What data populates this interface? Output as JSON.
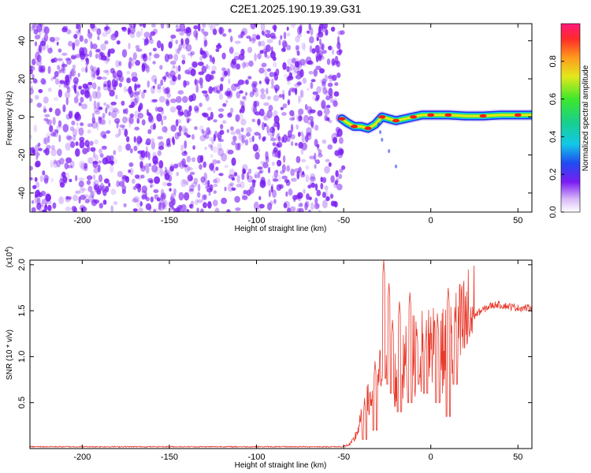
{
  "title": "C2E1.2025.190.19.39.G31",
  "chart_data": [
    {
      "type": "heatmap",
      "xlabel": "Height of straight line (km)",
      "ylabel": "Frequency (Hz)",
      "xlim": [
        -230,
        58
      ],
      "ylim": [
        -50,
        49
      ],
      "x_ticks": [
        -200,
        -150,
        -100,
        -50,
        0,
        50
      ],
      "y_ticks": [
        -40,
        -20,
        0,
        20,
        40
      ],
      "noise_region_x": [
        -230,
        -50
      ],
      "signal_track": [
        {
          "x": -51,
          "y": -1
        },
        {
          "x": -48,
          "y": -3
        },
        {
          "x": -44,
          "y": -5
        },
        {
          "x": -40,
          "y": -5
        },
        {
          "x": -36,
          "y": -6
        },
        {
          "x": -32,
          "y": -4
        },
        {
          "x": -28,
          "y": 0
        },
        {
          "x": -24,
          "y": -1
        },
        {
          "x": -20,
          "y": -2
        },
        {
          "x": -15,
          "y": -1
        },
        {
          "x": -10,
          "y": 0
        },
        {
          "x": -5,
          "y": 1
        },
        {
          "x": 0,
          "y": 1
        },
        {
          "x": 5,
          "y": 1
        },
        {
          "x": 10,
          "y": 1
        },
        {
          "x": 20,
          "y": 0.5
        },
        {
          "x": 30,
          "y": 0.5
        },
        {
          "x": 40,
          "y": 1
        },
        {
          "x": 50,
          "y": 1
        },
        {
          "x": 58,
          "y": 1
        }
      ],
      "colorbar": {
        "label": "Normalized spectral amplitude",
        "range": [
          0.0,
          1.0
        ],
        "ticks": [
          0.0,
          0.2,
          0.4,
          0.6,
          0.8
        ]
      },
      "colors": {
        "noise": "#7a1cf2",
        "peak": "#ff1a1a",
        "track": "#2a9d2a"
      }
    },
    {
      "type": "line",
      "xlabel": "Height of straight line (km)",
      "ylabel": "SNR (10 * v/v)",
      "multiplier_label": "(x10",
      "multiplier_exp": "4",
      "xlim": [
        -230,
        58
      ],
      "ylim": [
        0,
        2.05
      ],
      "x_ticks": [
        -200,
        -150,
        -100,
        -50,
        0,
        50
      ],
      "y_ticks": [
        0.5,
        1.0,
        1.5,
        2.0
      ],
      "series": [
        {
          "color": "#e83a2c",
          "points": [
            [
              -230,
              0.02
            ],
            [
              -120,
              0.02
            ],
            [
              -60,
              0.02
            ],
            [
              -50,
              0.02
            ],
            [
              -46,
              0.05
            ],
            [
              -44,
              0.1
            ],
            [
              -42,
              0.2
            ],
            [
              -40,
              0.3
            ],
            [
              -38,
              0.4
            ],
            [
              -36,
              0.5
            ],
            [
              -34,
              0.55
            ],
            [
              -32,
              0.6
            ],
            [
              -30,
              0.7
            ],
            [
              -28,
              0.9
            ],
            [
              -26,
              1.2
            ],
            [
              -24,
              1.1
            ],
            [
              -22,
              0.8
            ],
            [
              -20,
              0.75
            ],
            [
              -18,
              0.75
            ],
            [
              -16,
              0.85
            ],
            [
              -14,
              0.95
            ],
            [
              -12,
              1.0
            ],
            [
              -10,
              1.0
            ],
            [
              -8,
              1.05
            ],
            [
              -6,
              1.05
            ],
            [
              -4,
              1.08
            ],
            [
              -2,
              1.12
            ],
            [
              0,
              1.15
            ],
            [
              2,
              1.15
            ],
            [
              4,
              1.1
            ],
            [
              6,
              1.05
            ],
            [
              8,
              1.05
            ],
            [
              10,
              1.1
            ],
            [
              12,
              1.15
            ],
            [
              14,
              1.2
            ],
            [
              16,
              1.25
            ],
            [
              18,
              1.3
            ],
            [
              20,
              1.35
            ],
            [
              22,
              1.4
            ],
            [
              24,
              1.43
            ],
            [
              26,
              1.46
            ],
            [
              28,
              1.49
            ],
            [
              30,
              1.51
            ],
            [
              32,
              1.53
            ],
            [
              34,
              1.55
            ],
            [
              36,
              1.56
            ],
            [
              38,
              1.57
            ],
            [
              40,
              1.56
            ],
            [
              44,
              1.55
            ],
            [
              50,
              1.53
            ],
            [
              58,
              1.53
            ]
          ],
          "spikes": [
            [
              -27,
              2.05,
              0.8
            ],
            [
              -24,
              1.8,
              0.7
            ],
            [
              -18,
              1.6,
              0.4
            ],
            [
              -12,
              1.7,
              0.5
            ],
            [
              -8,
              1.3,
              0.7
            ],
            [
              -3,
              1.2,
              0.6
            ],
            [
              10,
              1.75,
              0.35
            ],
            [
              14,
              1.45,
              0.7
            ],
            [
              -38,
              0.55,
              0.1
            ],
            [
              -32,
              0.95,
              0.2
            ],
            [
              -22,
              1.4,
              0.6
            ],
            [
              4,
              1.4,
              0.5
            ]
          ]
        }
      ]
    }
  ]
}
